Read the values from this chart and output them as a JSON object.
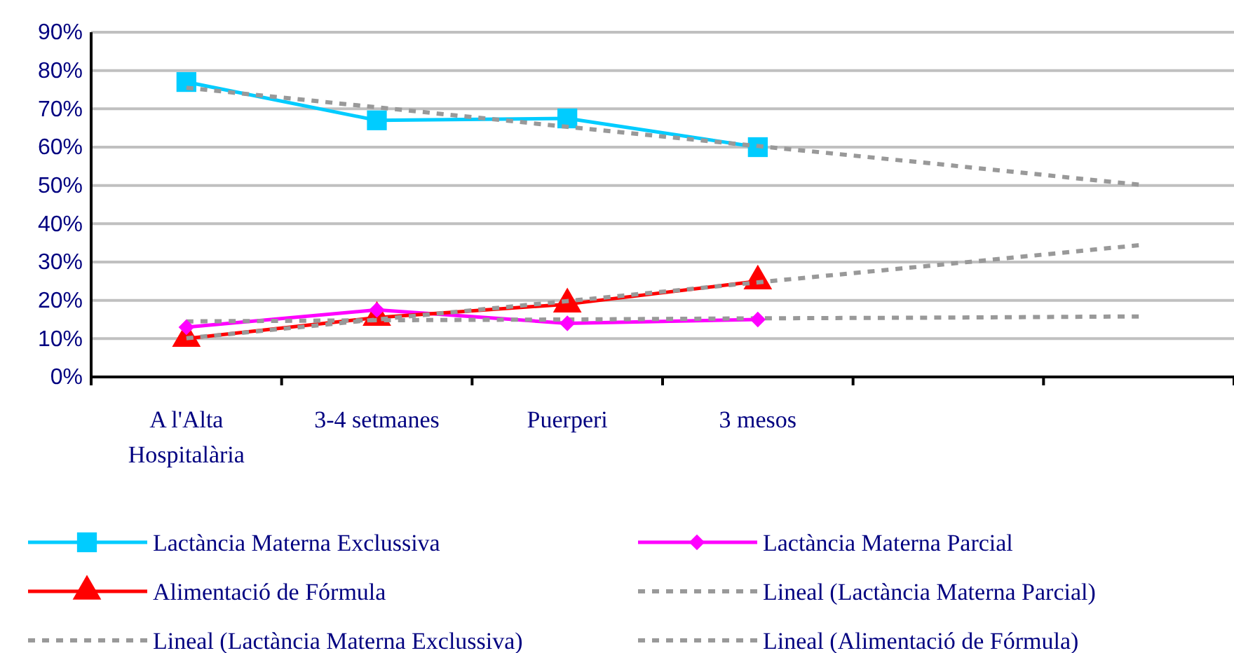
{
  "chart_data": {
    "type": "line",
    "categories": [
      "A l'Alta Hospitalària",
      "3-4 setmanes",
      "Puerperi",
      "3 mesos",
      null,
      null
    ],
    "series": [
      {
        "name": "Lactància Materna Exclussiva",
        "color": "#00ccff",
        "marker": "square",
        "line_style": "solid",
        "values": [
          77,
          67,
          67.5,
          60,
          null,
          null
        ]
      },
      {
        "name": "Lactància Materna Parcial",
        "color": "#ff00ff",
        "marker": "diamond",
        "line_style": "solid",
        "values": [
          13,
          17.5,
          14,
          15,
          null,
          null
        ]
      },
      {
        "name": "Alimentació de Fórmula",
        "color": "#ff0000",
        "marker": "triangle",
        "line_style": "solid",
        "values": [
          10,
          15.5,
          19,
          25,
          null,
          null
        ]
      },
      {
        "name": "Lineal (Lactància Materna Parcial)",
        "color": "#999999",
        "marker": "none",
        "line_style": "dashed",
        "values": [
          14.5,
          14.8,
          15.0,
          15.3,
          15.5,
          15.8
        ]
      },
      {
        "name": "Lineal (Lactància Materna Exclussiva)",
        "color": "#999999",
        "marker": "none",
        "line_style": "dashed",
        "values": [
          75.5,
          70.4,
          65.3,
          60.3,
          55.3,
          50.2
        ]
      },
      {
        "name": "Lineal (Alimentació de Fórmula)",
        "color": "#999999",
        "marker": "none",
        "line_style": "dashed",
        "values": [
          10.1,
          15.0,
          19.8,
          24.7,
          29.5,
          34.4
        ]
      }
    ],
    "ylim": [
      0,
      90
    ],
    "yticks": [
      {
        "value": 0,
        "label": "0%"
      },
      {
        "value": 10,
        "label": "10%"
      },
      {
        "value": 20,
        "label": "20%"
      },
      {
        "value": 30,
        "label": "30%"
      },
      {
        "value": 40,
        "label": "40%"
      },
      {
        "value": 50,
        "label": "50%"
      },
      {
        "value": 60,
        "label": "60%"
      },
      {
        "value": 70,
        "label": "70%"
      },
      {
        "value": 80,
        "label": "80%"
      },
      {
        "value": 90,
        "label": "90%"
      }
    ],
    "grid": "y",
    "legend": "bottom"
  }
}
